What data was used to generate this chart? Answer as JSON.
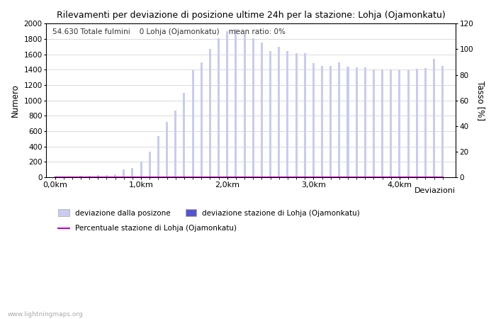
{
  "title": "Rilevamenti per deviazione di posizione ultime 24h per la stazione: Lohja (Ojamonkatu)",
  "subtitle": "54.630 Totale fulmini    0 Lohja (Ojamonkatu)    mean ratio: 0%",
  "ylabel_left": "Numero",
  "ylabel_right": "Tasso [%]",
  "xlabel": "Deviazioni",
  "watermark": "www.lightningmaps.org",
  "bar_color_light": "#c8ccf0",
  "bar_color_dark": "#5555cc",
  "line_color": "#cc00cc",
  "background_color": "#ffffff",
  "grid_color": "#cccccc",
  "ylim_left": [
    0,
    2000
  ],
  "ylim_right": [
    0,
    120
  ],
  "yticks_left": [
    0,
    200,
    400,
    600,
    800,
    1000,
    1200,
    1400,
    1600,
    1800,
    2000
  ],
  "yticks_right": [
    0,
    20,
    40,
    60,
    80,
    100,
    120
  ],
  "x_positions": [
    0.0,
    0.1,
    0.2,
    0.3,
    0.4,
    0.5,
    0.6,
    0.7,
    0.8,
    0.9,
    1.0,
    1.1,
    1.2,
    1.3,
    1.4,
    1.5,
    1.6,
    1.7,
    1.8,
    1.9,
    2.0,
    2.1,
    2.2,
    2.3,
    2.4,
    2.5,
    2.6,
    2.7,
    2.8,
    2.9,
    3.0,
    3.1,
    3.2,
    3.3,
    3.4,
    3.5,
    3.6,
    3.7,
    3.8,
    3.9,
    4.0,
    4.1,
    4.2,
    4.3,
    4.4,
    4.5
  ],
  "bar_values": [
    5,
    8,
    10,
    15,
    20,
    25,
    30,
    35,
    100,
    120,
    200,
    330,
    540,
    720,
    870,
    1100,
    1390,
    1500,
    1670,
    1810,
    1900,
    1930,
    1870,
    1810,
    1750,
    1640,
    1700,
    1640,
    1620,
    1620,
    1490,
    1450,
    1450,
    1500,
    1440,
    1430,
    1430,
    1400,
    1400,
    1400,
    1390,
    1390,
    1410,
    1420,
    1540,
    1450
  ],
  "station_bar_values": [
    0,
    0,
    0,
    0,
    0,
    0,
    0,
    0,
    0,
    0,
    0,
    0,
    0,
    0,
    0,
    0,
    0,
    0,
    0,
    0,
    0,
    0,
    0,
    0,
    0,
    0,
    0,
    0,
    0,
    0,
    0,
    0,
    0,
    0,
    0,
    0,
    0,
    0,
    0,
    0,
    0,
    0,
    0,
    0,
    0,
    0
  ],
  "ratio_values": [
    0,
    0,
    0,
    0,
    0,
    0,
    0,
    0,
    0,
    0,
    0,
    0,
    0,
    0,
    0,
    0,
    0,
    0,
    0,
    0,
    0,
    0,
    0,
    0,
    0,
    0,
    0,
    0,
    0,
    0,
    0,
    0,
    0,
    0,
    0,
    0,
    0,
    0,
    0,
    0,
    0,
    0,
    0,
    0,
    0,
    0
  ],
  "xtick_positions": [
    0.0,
    1.0,
    2.0,
    3.0,
    4.0
  ],
  "xtick_labels": [
    "0,0km",
    "1,0km",
    "2,0km",
    "3,0km",
    "4,0km"
  ],
  "legend_entries": [
    {
      "label": "deviazione dalla posizone",
      "color": "#c8ccf0",
      "type": "bar"
    },
    {
      "label": "deviazione stazione di Lohja (Ojamonkatu)",
      "color": "#5555cc",
      "type": "bar"
    },
    {
      "label": "Percentuale stazione di Lohja (Ojamonkatu)",
      "color": "#cc00cc",
      "type": "line"
    }
  ]
}
